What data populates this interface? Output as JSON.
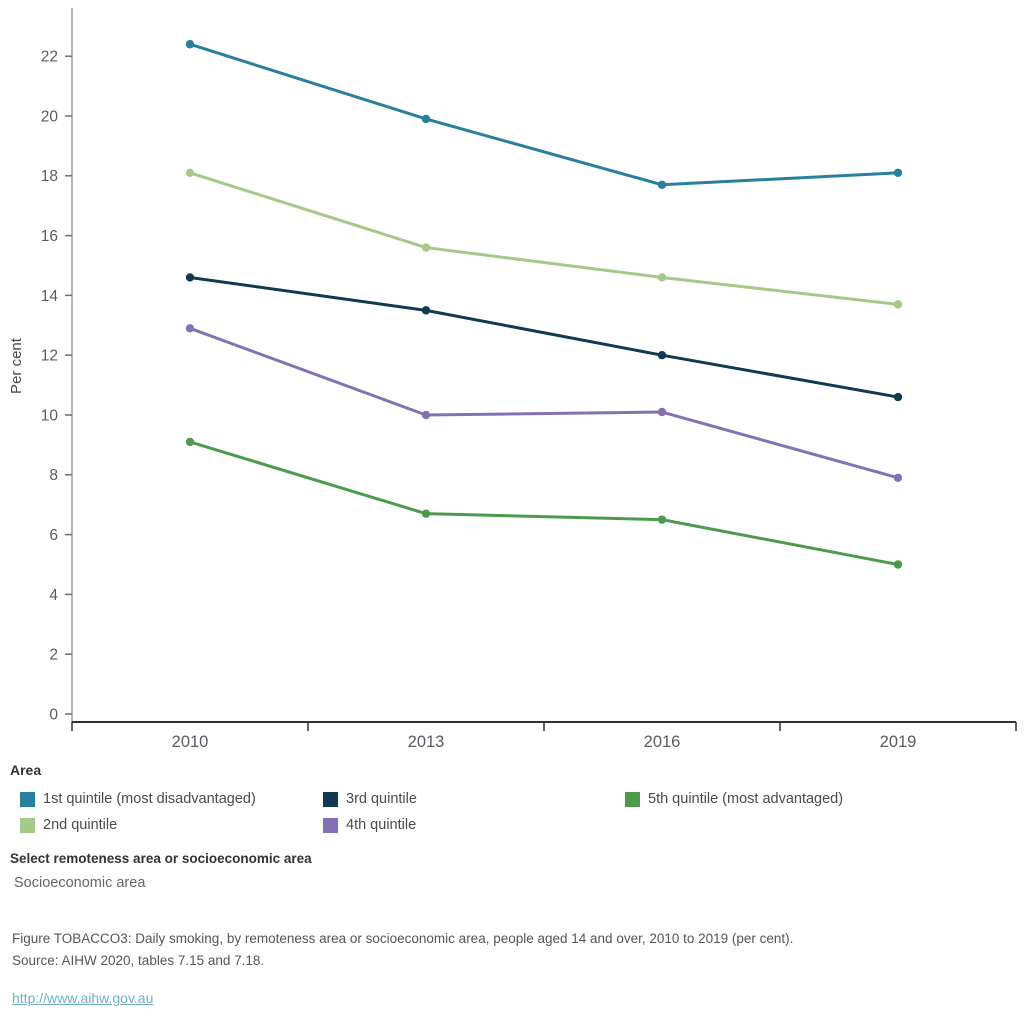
{
  "chart_data": {
    "type": "line",
    "title": "",
    "xlabel": "",
    "ylabel": "Per cent",
    "categories": [
      "2010",
      "2013",
      "2016",
      "2019"
    ],
    "ylim": [
      0,
      23.5
    ],
    "yticks": [
      0,
      2,
      4,
      6,
      8,
      10,
      12,
      14,
      16,
      18,
      20,
      22
    ],
    "grid": false,
    "legend_position": "bottom",
    "marker": "circle",
    "series": [
      {
        "name": "1st quintile (most disadvantaged)",
        "color": "#2A7E9E",
        "values": [
          22.4,
          19.9,
          17.7,
          18.1
        ]
      },
      {
        "name": "2nd quintile",
        "color": "#A5C98A",
        "values": [
          18.1,
          15.6,
          14.6,
          13.7
        ]
      },
      {
        "name": "3rd quintile",
        "color": "#113950",
        "values": [
          14.6,
          13.5,
          12.0,
          10.6
        ]
      },
      {
        "name": "4th quintile",
        "color": "#8471B5",
        "values": [
          12.9,
          10.0,
          10.1,
          7.9
        ]
      },
      {
        "name": "5th quintile (most advantaged)",
        "color": "#4C9B4D",
        "values": [
          9.1,
          6.7,
          6.5,
          5.0
        ]
      }
    ]
  },
  "legend": {
    "title": "Area",
    "columns": [
      [
        0,
        1
      ],
      [
        2,
        3
      ],
      [
        4
      ]
    ]
  },
  "filter": {
    "label": "Select remoteness area or socioeconomic area",
    "value": "Socioeconomic area"
  },
  "caption": {
    "line1": "Figure TOBACCO3: Daily smoking, by remoteness area or socioeconomic area, people aged 14 and over, 2010 to 2019 (per cent).",
    "line2": "Source: AIHW 2020, tables 7.15 and 7.18."
  },
  "link": {
    "text": "http://www.aihw.gov.au",
    "color": "#6FAECB"
  },
  "colors": {
    "axis_line_x": "#2f2f2f",
    "axis_line_y": "#b6b6b6",
    "tick_mark": "#6e6e6e",
    "tick_label": "#575c61",
    "axis_title": "#4a4a4a"
  }
}
